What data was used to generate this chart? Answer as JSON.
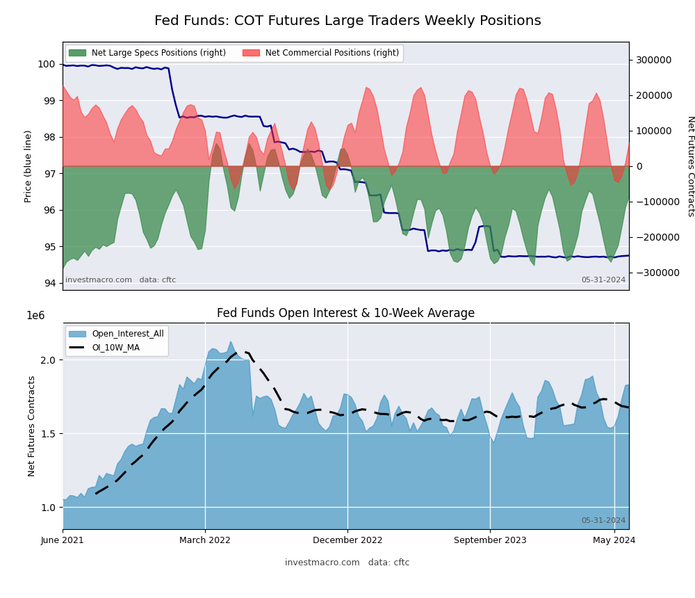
{
  "title_top": "Fed Funds: COT Futures Large Traders Weekly Positions",
  "title_bottom": "Fed Funds Open Interest & 10-Week Average",
  "ylabel_left_top": "Price (blue line)",
  "ylabel_right_top": "Net Futures Contracts",
  "ylabel_left_bottom": "Net Futures Contracts",
  "watermark_left": "investmacro.com   data: cftc",
  "watermark_right": "05-31-2024",
  "legend_specs": [
    "Net Large Specs Positions (right)",
    "Net Commercial Positions (right)"
  ],
  "legend_oi": [
    "Open_Interest_All",
    "OI_10W_MA"
  ],
  "bg_color": "#e8eaf2",
  "green_fill": "#3d8c4f",
  "green_fill_alpha": 0.75,
  "red_fill": "#ff3333",
  "red_fill_alpha": 0.55,
  "blue_line_color": "#00008B",
  "oi_bar_color": "#5ba3c9",
  "oi_ma_color": "black",
  "price_ylim": [
    93.8,
    100.6
  ],
  "price_yticks": [
    94,
    95,
    96,
    97,
    98,
    99,
    100
  ],
  "net_ylim": [
    -350000,
    350000
  ],
  "net_yticks": [
    -300000,
    -200000,
    -100000,
    0,
    100000,
    200000,
    300000
  ],
  "oi_ylim": [
    850000.0,
    2250000.0
  ],
  "n_points": 156
}
